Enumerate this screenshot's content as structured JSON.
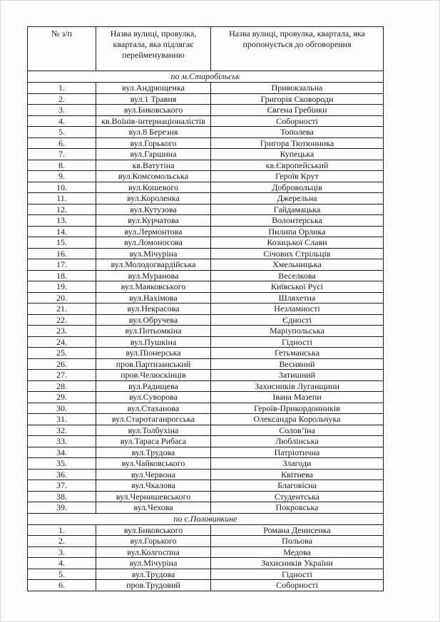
{
  "table": {
    "headers": {
      "number": "№ з/п",
      "old_name": "Назва вулиці, провулка, квартала, яка підлягає перейменуванню",
      "new_name": "Назва вулиці, провулка, квартала, яка пропонується до обговорення"
    },
    "sections": [
      {
        "title": "по м.Старобільськ",
        "rows": [
          {
            "num": "1.",
            "old": "вул.Андрющенка",
            "new": "Привокзальна"
          },
          {
            "num": "2.",
            "old": "вул.1 Травня",
            "new": "Григорія Сковороди"
          },
          {
            "num": "3.",
            "old": "вул.Биковського",
            "new": "Євгена Гребінки"
          },
          {
            "num": "4.",
            "old": "кв.Воїнів-інтернаціоналістів",
            "new": "Соборності"
          },
          {
            "num": "5.",
            "old": "вул.8 Березня",
            "new": "Тополева"
          },
          {
            "num": "6.",
            "old": "вул.Горького",
            "new": "Григора Тютюнника"
          },
          {
            "num": "7.",
            "old": "вул.Гаршина",
            "new": "Купецька"
          },
          {
            "num": "8.",
            "old": "кв.Ватутіна",
            "new": "кв.Європейський"
          },
          {
            "num": "9.",
            "old": "вул.Комсомольська",
            "new": "Героїв Крут"
          },
          {
            "num": "10.",
            "old": "вул.Кошевого",
            "new": "Добровольців"
          },
          {
            "num": "11.",
            "old": "вул.Короленка",
            "new": "Джерельна"
          },
          {
            "num": "12.",
            "old": "вул.Кутузова",
            "new": "Гайдамацька"
          },
          {
            "num": "13.",
            "old": "вул.Курчатова",
            "new": "Волонтерська"
          },
          {
            "num": "14.",
            "old": "вул.Лермонтова",
            "new": "Пилипа Орлика"
          },
          {
            "num": "15.",
            "old": "вул.Ломоносова",
            "new": "Козацької Слави"
          },
          {
            "num": "16.",
            "old": "вул.Мічуріна",
            "new": "Січових Стрільців"
          },
          {
            "num": "17.",
            "old": "вул.Молодогвардійська",
            "new": "Хмельницька"
          },
          {
            "num": "18.",
            "old": "вул.Муранова",
            "new": "Веселкова"
          },
          {
            "num": "19.",
            "old": "вул.Маяковського",
            "new": "Київської Русі"
          },
          {
            "num": "20.",
            "old": "вул.Нахімова",
            "new": "Шляхетна"
          },
          {
            "num": "21.",
            "old": "вул.Некрасова",
            "new": "Незламності"
          },
          {
            "num": "22.",
            "old": "вул.Обручева",
            "new": "Єдності"
          },
          {
            "num": "23.",
            "old": "вул.Потьомкіна",
            "new": "Маріупольська"
          },
          {
            "num": "24.",
            "old": "вул.Пушкіна",
            "new": "Гідності"
          },
          {
            "num": "25.",
            "old": "вул.Піонерська",
            "new": "Гетьманська"
          },
          {
            "num": "26.",
            "old": "пров.Партизанський",
            "new": "Весняний"
          },
          {
            "num": "27.",
            "old": "пров.Челюскінців",
            "new": "Затишний"
          },
          {
            "num": "28.",
            "old": "вул.Радищева",
            "new": "Захисників Луганщини"
          },
          {
            "num": "29.",
            "old": "вул.Суворова",
            "new": "Івана Мазепи"
          },
          {
            "num": "30.",
            "old": "вул.Стаханова",
            "new": "Героїв-Прикордонників"
          },
          {
            "num": "31.",
            "old": "вул.Старотаганрогська",
            "new": "Олександра Корольчука"
          },
          {
            "num": "32.",
            "old": "вул.Толбухіна",
            "new": "Солов’їна"
          },
          {
            "num": "33.",
            "old": "вул.Тараса Рибаса",
            "new": "Люблінська"
          },
          {
            "num": "34.",
            "old": "вул.Трудова",
            "new": "Патріотична"
          },
          {
            "num": "35.",
            "old": "вул.Чайковського",
            "new": "Злагоди"
          },
          {
            "num": "36.",
            "old": "вул.Червона",
            "new": "Квітнева"
          },
          {
            "num": "37.",
            "old": "вул.Чкалова",
            "new": "Благовісна"
          },
          {
            "num": "38.",
            "old": "вул.Чернишевського",
            "new": "Студентська"
          },
          {
            "num": "39.",
            "old": "вул.Чехова",
            "new": "Покровська"
          }
        ]
      },
      {
        "title": "по с.Половинкине",
        "rows": [
          {
            "num": "1.",
            "old": "вул.Биковського",
            "new": "Романа Денисенка"
          },
          {
            "num": "2.",
            "old": "вул.Горького",
            "new": "Польова"
          },
          {
            "num": "3.",
            "old": "вул.Колгоспна",
            "new": "Медова"
          },
          {
            "num": "4.",
            "old": "вул.Мічуріна",
            "new": "Захисників України"
          },
          {
            "num": "5.",
            "old": "вул.Трудова",
            "new": "Гідності"
          },
          {
            "num": "6.",
            "old": "пров.Трудовий",
            "new": "Соборності"
          }
        ]
      }
    ]
  }
}
